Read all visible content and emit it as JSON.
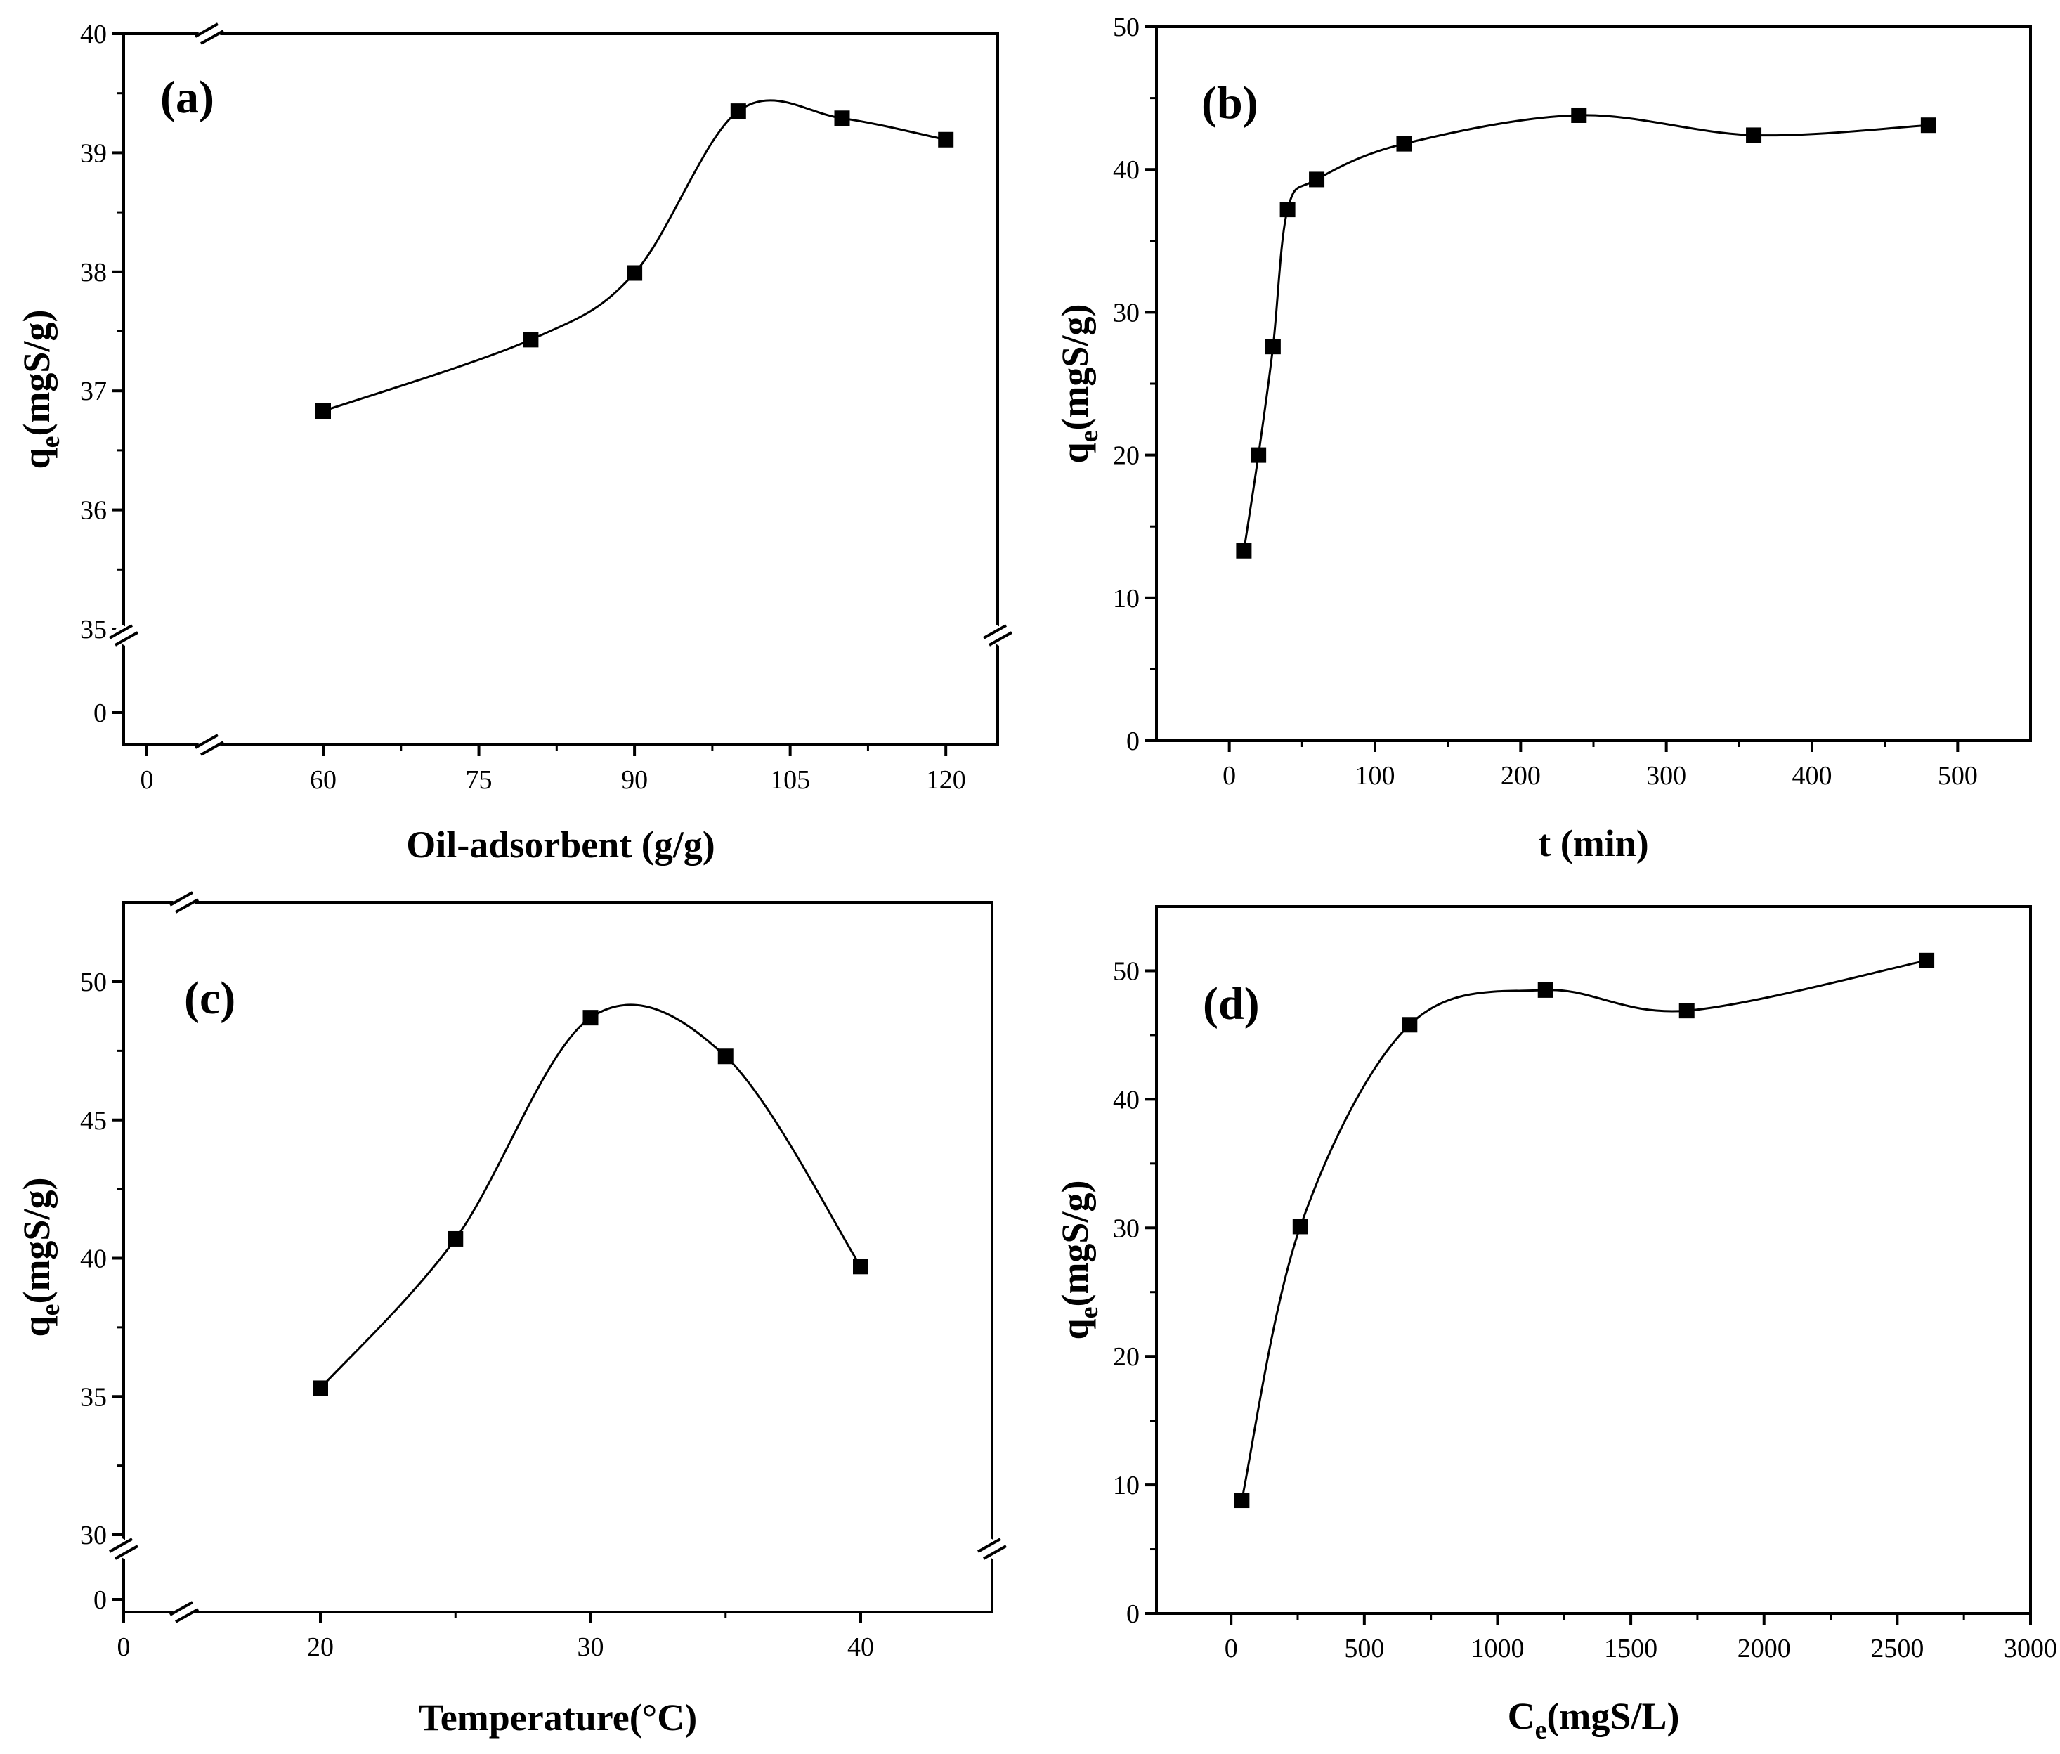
{
  "figure": {
    "colors": {
      "axis": "#000000",
      "line": "#000000",
      "marker": "#000000",
      "background": "#ffffff"
    }
  },
  "chart_data": [
    {
      "panel": "(a)",
      "type": "line",
      "xlabel": "Oil-adsorbent (g/g)",
      "ylabel": "qe(mgS/g)",
      "ylabel_main": "q",
      "ylabel_sub": "e",
      "ylabel_rest": "(mgS/g)",
      "xlim": [
        -1,
        126
      ],
      "ylim": [
        34.3,
        40
      ],
      "x_break": "between 0 and 60",
      "y_break": "between 0 and 35",
      "xticks": [
        0,
        60,
        75,
        90,
        105,
        120
      ],
      "xtick_labels": [
        "0",
        "60",
        "75",
        "90",
        "105",
        "120"
      ],
      "yticks": [
        0,
        35,
        36,
        37,
        38,
        39,
        40
      ],
      "ytick_labels": [
        "0",
        "35",
        "36",
        "37",
        "38",
        "39",
        "40"
      ],
      "series": [
        {
          "name": "qe",
          "x": [
            60,
            80,
            90,
            100,
            110,
            120
          ],
          "y": [
            36.83,
            37.43,
            37.99,
            39.35,
            39.29,
            39.11
          ]
        }
      ]
    },
    {
      "panel": "(b)",
      "type": "line",
      "xlabel": "t (min)",
      "ylabel": "qe(mgS/g)",
      "ylabel_main": "q",
      "ylabel_sub": "e",
      "ylabel_rest": "(mgS/g)",
      "xlim": [
        -50,
        550
      ],
      "ylim": [
        0,
        50
      ],
      "xticks": [
        0,
        100,
        200,
        300,
        400,
        500
      ],
      "xtick_labels": [
        "0",
        "100",
        "200",
        "300",
        "400",
        "500"
      ],
      "yticks": [
        0,
        10,
        20,
        30,
        40,
        50
      ],
      "ytick_labels": [
        "0",
        "10",
        "20",
        "30",
        "40",
        "50"
      ],
      "series": [
        {
          "name": "qe",
          "x": [
            10,
            20,
            30,
            40,
            60,
            120,
            240,
            360,
            480
          ],
          "y": [
            13.3,
            20.0,
            27.6,
            37.2,
            39.3,
            41.8,
            43.8,
            42.4,
            43.1
          ]
        }
      ]
    },
    {
      "panel": "(c)",
      "type": "line",
      "xlabel": "Temperature(°C)",
      "ylabel": "qe(mgS/g)",
      "ylabel_main": "q",
      "ylabel_sub": "e",
      "ylabel_rest": "(mgS/g)",
      "xlim": [
        0,
        45
      ],
      "ylim": [
        27.5,
        53
      ],
      "x_break": "between 0 and 20",
      "y_break": "between 0 and 30",
      "xticks": [
        0,
        20,
        30,
        40
      ],
      "xtick_labels": [
        "0",
        "20",
        "30",
        "40"
      ],
      "yticks": [
        0,
        30,
        35,
        40,
        45,
        50
      ],
      "ytick_labels": [
        "0",
        "30",
        "35",
        "40",
        "45",
        "50"
      ],
      "series": [
        {
          "name": "qe",
          "x": [
            20,
            25,
            30,
            35,
            40
          ],
          "y": [
            35.3,
            40.7,
            48.7,
            47.3,
            39.7
          ]
        }
      ]
    },
    {
      "panel": "(d)",
      "type": "line",
      "xlabel": "Ce(mgS/L)",
      "xlabel_main": "C",
      "xlabel_sub": "e",
      "xlabel_rest": "(mgS/L)",
      "ylabel": "qe(mgS/g)",
      "ylabel_main": "q",
      "ylabel_sub": "e",
      "ylabel_rest": "(mgS/g)",
      "xlim": [
        -280,
        3000
      ],
      "ylim": [
        0,
        55
      ],
      "xticks": [
        0,
        500,
        1000,
        1500,
        2000,
        2500,
        3000
      ],
      "xtick_labels": [
        "0",
        "500",
        "1000",
        "1500",
        "2000",
        "2500",
        "3000"
      ],
      "yticks": [
        0,
        10,
        20,
        30,
        40,
        50
      ],
      "ytick_labels": [
        "0",
        "10",
        "20",
        "30",
        "40",
        "50"
      ],
      "series": [
        {
          "name": "qe",
          "x": [
            40,
            260,
            670,
            1180,
            1710,
            2610
          ],
          "y": [
            8.8,
            30.1,
            45.8,
            48.5,
            46.9,
            50.8
          ]
        }
      ]
    }
  ]
}
